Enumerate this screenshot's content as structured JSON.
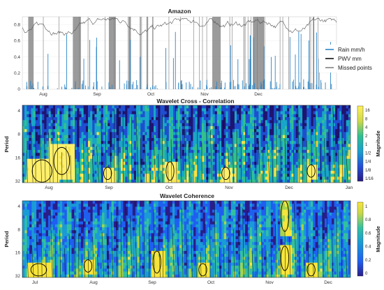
{
  "chart_data": [
    {
      "type": "line",
      "title": "Amazon",
      "x_months": [
        "Aug",
        "Sep",
        "Oct",
        "Nov",
        "Dec"
      ],
      "yticks": [
        "0",
        "0.2",
        "0.4",
        "0.6",
        "0.8"
      ],
      "ylim": [
        0,
        0.9
      ],
      "series": [
        {
          "name": "Rain mm/h",
          "color": "#2f86c6"
        },
        {
          "name": "PWV mm",
          "color": "#111111"
        },
        {
          "name": "Missed points",
          "color": "#808080"
        }
      ],
      "pwv_level_range": [
        0.72,
        0.85
      ],
      "rain_typical_peak": 0.6,
      "missed_blocks_month_fraction": [
        [
          0.12,
          0.22
        ],
        [
          0.95,
          1.1
        ],
        [
          1.62,
          1.75
        ],
        [
          1.99,
          2.02
        ],
        [
          2.32,
          2.35
        ],
        [
          3.55,
          3.7
        ],
        [
          4.3,
          4.5
        ]
      ],
      "legend_position": "right"
    },
    {
      "type": "heatmap",
      "title": "Wavelet Cross - Correlation",
      "ylabel": "Period",
      "yticks": [
        "4",
        "8",
        "16",
        "32"
      ],
      "x_months": [
        "Aug",
        "Sep",
        "Oct",
        "Nov",
        "Dec",
        "Jan"
      ],
      "colorbar_label": "Magnitude",
      "colorbar_ticks": [
        "16",
        "8",
        "4",
        "2",
        "1",
        "1/2",
        "1/4",
        "1/8",
        "1/16"
      ],
      "colors": [
        "#1f1470",
        "#1f4fd0",
        "#18a6c9",
        "#34c08e",
        "#f5e24a",
        "#fff06a"
      ]
    },
    {
      "type": "heatmap",
      "title": "Wavelet Coherence",
      "ylabel": "Period",
      "yticks": [
        "4",
        "8",
        "16",
        "32"
      ],
      "x_months": [
        "Jul",
        "Aug",
        "Sep",
        "Oct",
        "Nov",
        "Dec"
      ],
      "colorbar_label": "Magnitude",
      "colorbar_ticks": [
        "1",
        "0.8",
        "0.6",
        "0.4",
        "0.2",
        "0"
      ],
      "colors": [
        "#2a1d8a",
        "#1f5ff0",
        "#1a9ad6",
        "#33c0a0",
        "#a8d44a",
        "#f7e53c"
      ]
    }
  ]
}
